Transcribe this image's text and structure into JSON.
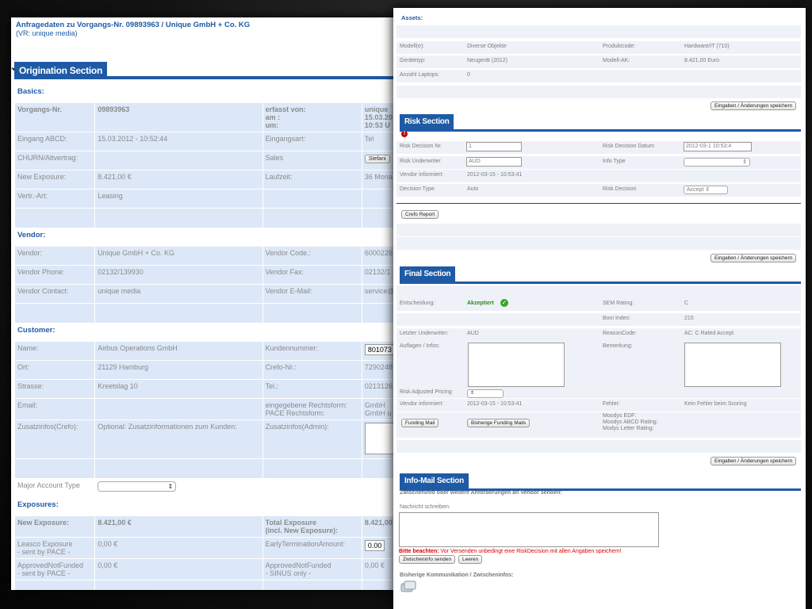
{
  "left": {
    "header_title": "Anfragedaten zu Vorgangs-Nr. 09893963 / Unique GmbH + Co. KG",
    "header_sub": "(VR: unique media)",
    "section_title": "Origination Section",
    "basics": {
      "heading": "Basics:",
      "rows": [
        [
          "Vorgangs-Nr.",
          "09893963",
          "erfasst von:\nam :\num:",
          "unique\n15.03.20\n10:53 U"
        ],
        [
          "Eingang ABCD:",
          "15.03.2012 - 10:52:44",
          "Eingangsart:",
          "Tel"
        ],
        [
          "CHURN/Altvertrag:",
          "",
          "Sales",
          "Stefani"
        ],
        [
          "New Exposure:",
          "8.421,00 €",
          "Laufzeit:",
          "36 Mona"
        ],
        [
          "Vertr.-Art:",
          "Leasing",
          "",
          ""
        ]
      ]
    },
    "vendor": {
      "heading": "Vendor:",
      "rows": [
        [
          "Vendor:",
          "Unique GmbH + Co. KG",
          "Vendor Code.:",
          "6000226"
        ],
        [
          "Vendor Phone:",
          "02132/139930",
          "Vendor Fax:",
          "02132/1"
        ],
        [
          "Vendor Contact:",
          "unique media",
          "Vendor E-Mail:",
          "service@"
        ]
      ]
    },
    "customer": {
      "heading": "Customer:",
      "rows": [
        [
          "Name:",
          "Airbus Operations GmbH",
          "Kundennummer:",
          "801073"
        ],
        [
          "Ort:",
          "21129 Hamburg",
          "Crefo-Nr.:",
          "7290248"
        ],
        [
          "Strasse:",
          "Kreetslag 10",
          "Tel.:",
          "0213126"
        ],
        [
          "Email:",
          "",
          "eingegebene Rechtsform:\nPACE Rechtsform:",
          "GmbH\nGmbH u"
        ],
        [
          "Zusatzinfos(Crefo):",
          "Optional: Zusatzinformationen zum Kunden:",
          "Zusatzinfos(Admin):",
          ""
        ]
      ],
      "major_label": "Major Account Type"
    },
    "exposures": {
      "heading": "Exposures:",
      "rows": [
        [
          "New Exposure:",
          "8.421,00 €",
          "Total Exposure\n(incl. New Exposure):",
          "8.421,00"
        ],
        [
          "Leasco Exposure\n- sent by PACE -",
          "0,00 €",
          "EarlyTerminationAmount:",
          "0.00"
        ],
        [
          "ApprovedNotFunded\n- sent by PACE -",
          "0,00 €",
          "ApprovedNotFunded\n- SINUS only -",
          "0,00 €"
        ]
      ]
    }
  },
  "right": {
    "assets_heading": "Assets:",
    "assets_rows": [
      [
        "Modell(e):",
        "Diverse Objekte",
        "Produktcode:",
        "Hardware/IT (710)"
      ],
      [
        "Gerätetyp:",
        "Neugerät (2012)",
        "Modell-AK:",
        "8.421,00 Euro"
      ],
      [
        "Anzahl Laptops:",
        "0",
        "",
        ""
      ]
    ],
    "save_label": "Eingaben / Änderungen speichern",
    "risk_title": "Risk Section",
    "risk_rows": [
      [
        "Risk Decision Nr.",
        "1",
        "Risk Decision Datum",
        "2012-03-1  10:53:4"
      ],
      [
        "Risk Underwriter",
        "AUD",
        "Info Type",
        ""
      ],
      [
        "Vendor informiert:",
        "2012-03-15 - 10:53:41",
        "",
        ""
      ],
      [
        "Decision Type",
        "Auto",
        "Risk Decision",
        "Accept"
      ]
    ],
    "crefo_label": "Crefo Report",
    "final_title": "Final Section",
    "final": {
      "entscheidung_label": "Entscheidung:",
      "entscheidung_value": "Akzeptiert",
      "sem_label": "SEM Rating:",
      "sem_value": "C",
      "boni_label": "Boni Index:",
      "boni_value": "215",
      "letzter_label": "Letzter Underwriter:",
      "letzter_value": "AUD",
      "reason_label": "ReasonCode:",
      "reason_value": "AC: C Rated Accept",
      "auflagen_label": "Auflagen / Infos:",
      "bemerkung_label": "Bemerkung:",
      "rap_label": "Risk Adjusted Pricing",
      "vendor_inf_label": "Vendor informiert:",
      "vendor_inf_value": "2012-03-15 - 10:53:41",
      "fehler_label": "Fehler:",
      "fehler_value": "Kein Fehler beim Scoring",
      "funding_mail": "Funding Mail",
      "bisherige_funding": "Bisherige Funding Mails",
      "moodys": "Moodys EDF:\nMoodys ABCD Rating:\nModys Letter Rating:"
    },
    "info_title": "Info-Mail Section",
    "info_sub": "Zwischeninfo oder weitere Anforderungen an Vendor senden:",
    "nachricht_label": "Nachricht schreiben:",
    "warn_bold": "Bitte beachten:",
    "warn_text": " Vor Versenden unbedingt eine RiskDecision mit allen Angaben speichern!",
    "send_label": "Zwischeninfo senden",
    "clear_label": "Leeren",
    "bisherige_komm": "Bisherige Kommunikation / Zwischeninfos:"
  }
}
